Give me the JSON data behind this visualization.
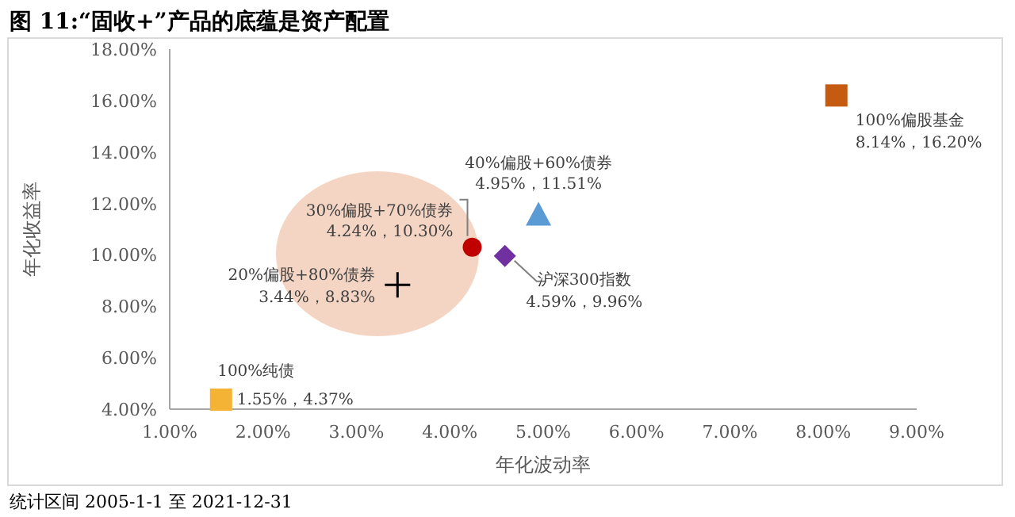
{
  "chart_data": {
    "type": "scatter",
    "title": "图 11:“固收+”产品的底蕴是资产配置",
    "xlabel": "年化波动率",
    "ylabel": "年化收益率",
    "annotations": [
      "统计区间 2005-1-1 至 2021-12-31"
    ],
    "xlim": [
      1,
      9
    ],
    "ylim": [
      4,
      18
    ],
    "xticks": [
      {
        "value": 1,
        "label": "1.00%"
      },
      {
        "value": 2,
        "label": "2.00%"
      },
      {
        "value": 3,
        "label": "3.00%"
      },
      {
        "value": 4,
        "label": "4.00%"
      },
      {
        "value": 5,
        "label": "5.00%"
      },
      {
        "value": 6,
        "label": "6.00%"
      },
      {
        "value": 7,
        "label": "7.00%"
      },
      {
        "value": 8,
        "label": "8.00%"
      },
      {
        "value": 9,
        "label": "9.00%"
      }
    ],
    "yticks": [
      {
        "value": 4,
        "label": "4.00%"
      },
      {
        "value": 6,
        "label": "6.00%"
      },
      {
        "value": 8,
        "label": "8.00%"
      },
      {
        "value": 10,
        "label": "10.00%"
      },
      {
        "value": 12,
        "label": "12.00%"
      },
      {
        "value": 14,
        "label": "14.00%"
      },
      {
        "value": 16,
        "label": "16.00%"
      },
      {
        "value": 18,
        "label": "18.00%"
      }
    ],
    "grid": false,
    "series": [
      {
        "name": "100%纯债",
        "color": "#f5b335",
        "marker": "square",
        "x": [
          1.55
        ],
        "values": [
          4.37
        ],
        "value_labels": [
          "1.55%，4.37%"
        ]
      },
      {
        "name": "20%偏股+80%债券",
        "color": "#000000",
        "marker": "cross",
        "x": [
          3.44
        ],
        "values": [
          8.83
        ],
        "value_labels": [
          "3.44%，8.83%"
        ]
      },
      {
        "name": "30%偏股+70%债券",
        "color": "#c00000",
        "marker": "circle",
        "x": [
          4.24
        ],
        "values": [
          10.3
        ],
        "value_labels": [
          "4.24%，10.30%"
        ]
      },
      {
        "name": "40%偏股+60%债券",
        "color": "#5b9bd5",
        "marker": "triangle",
        "x": [
          4.95
        ],
        "values": [
          11.51
        ],
        "value_labels": [
          "4.95%，11.51%"
        ]
      },
      {
        "name": "沪深300指数",
        "color": "#7030a0",
        "marker": "diamond",
        "x": [
          4.59
        ],
        "values": [
          9.96
        ],
        "value_labels": [
          "4.59%，9.96%"
        ]
      },
      {
        "name": "100%偏股基金",
        "color": "#c55a11",
        "marker": "square",
        "x": [
          8.14
        ],
        "values": [
          16.2
        ],
        "value_labels": [
          "8.14%，16.20%"
        ]
      }
    ]
  }
}
